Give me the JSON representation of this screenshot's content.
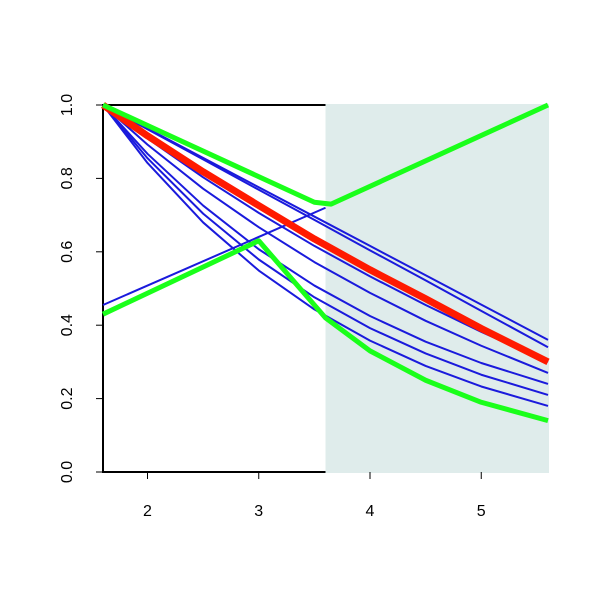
{
  "chart_data": {
    "type": "line",
    "xlim": [
      1.6,
      5.6
    ],
    "ylim": [
      0,
      1
    ],
    "xticks": [
      2,
      3,
      4,
      5
    ],
    "yticks": [
      {
        "value": 0,
        "label": "0.0"
      },
      {
        "value": 0.2,
        "label": "0.2"
      },
      {
        "value": 0.4,
        "label": "0.4"
      },
      {
        "value": 0.6,
        "label": "0.6"
      },
      {
        "value": 0.8,
        "label": "0.8"
      },
      {
        "value": 1,
        "label": "1.0"
      }
    ],
    "shaded_region": {
      "xlim": [
        3.6,
        5.6
      ],
      "color": "#dfeceb"
    },
    "series": [
      {
        "color": "#1a1adc",
        "linewidth": 2,
        "x": [
          1.6,
          2.0,
          2.5,
          3.0,
          3.5,
          4.0,
          4.5,
          5.0,
          5.6
        ],
        "values": [
          1,
          0.936,
          0.856,
          0.776,
          0.696,
          0.616,
          0.536,
          0.456,
          0.36
        ]
      },
      {
        "color": "#1a1adc",
        "linewidth": 2,
        "x": [
          1.6,
          2.0,
          2.5,
          3.0,
          3.5,
          4.0,
          4.5,
          5.0,
          5.6
        ],
        "values": [
          1,
          0.934,
          0.852,
          0.769,
          0.687,
          0.604,
          0.522,
          0.439,
          0.34
        ]
      },
      {
        "color": "#1a1adc",
        "linewidth": 2,
        "x": [
          1.6,
          2.0,
          2.5,
          3.0,
          3.5,
          4.0,
          4.5,
          5.0,
          5.6
        ],
        "values": [
          1,
          0.909,
          0.803,
          0.706,
          0.616,
          0.533,
          0.455,
          0.382,
          0.3
        ]
      },
      {
        "color": "#1a1adc",
        "linewidth": 2,
        "x": [
          1.6,
          2.0,
          2.5,
          3.0,
          3.5,
          4.0,
          4.5,
          5.0,
          5.6
        ],
        "values": [
          1,
          0.892,
          0.772,
          0.667,
          0.572,
          0.488,
          0.412,
          0.344,
          0.27
        ]
      },
      {
        "color": "#1a1adc",
        "linewidth": 2,
        "x": [
          1.6,
          2.0,
          2.5,
          3.0,
          3.5,
          4.0,
          4.5,
          5.0,
          5.6
        ],
        "values": [
          1,
          0.867,
          0.726,
          0.607,
          0.508,
          0.425,
          0.355,
          0.297,
          0.24
        ]
      },
      {
        "color": "#1a1adc",
        "linewidth": 2,
        "x": [
          1.6,
          2.0,
          2.5,
          3.0,
          3.5,
          4.0,
          4.5,
          5.0,
          5.6
        ],
        "values": [
          1,
          0.855,
          0.704,
          0.579,
          0.476,
          0.392,
          0.323,
          0.265,
          0.21
        ]
      },
      {
        "color": "#1a1adc",
        "linewidth": 2,
        "x": [
          1.6,
          2.0,
          2.5,
          3.0,
          3.5,
          4.0,
          4.5,
          5.0,
          5.6
        ],
        "values": [
          1,
          0.842,
          0.68,
          0.549,
          0.443,
          0.358,
          0.289,
          0.233,
          0.18
        ]
      },
      {
        "color": "#1a1adc",
        "linewidth": 2,
        "x": [
          1.6,
          3.6
        ],
        "values": [
          0.455,
          0.72
        ]
      },
      {
        "color": "#ff1a00",
        "linewidth": 7,
        "x": [
          1.6,
          2.0,
          2.5,
          3.0,
          3.5,
          4.0,
          4.5,
          5.0,
          5.6
        ],
        "values": [
          1,
          0.916,
          0.818,
          0.726,
          0.635,
          0.551,
          0.472,
          0.391,
          0.3
        ]
      },
      {
        "color": "#1aff1a",
        "linewidth": 5,
        "x": [
          1.6,
          3.5,
          3.65,
          5.6
        ],
        "values": [
          1,
          0.735,
          0.73,
          1
        ]
      },
      {
        "color": "#1aff1a",
        "linewidth": 5,
        "x": [
          1.6,
          3.0,
          3.6,
          4.0,
          4.5,
          5.0,
          5.6
        ],
        "values": [
          0.43,
          0.63,
          0.42,
          0.33,
          0.25,
          0.19,
          0.14
        ]
      }
    ]
  }
}
